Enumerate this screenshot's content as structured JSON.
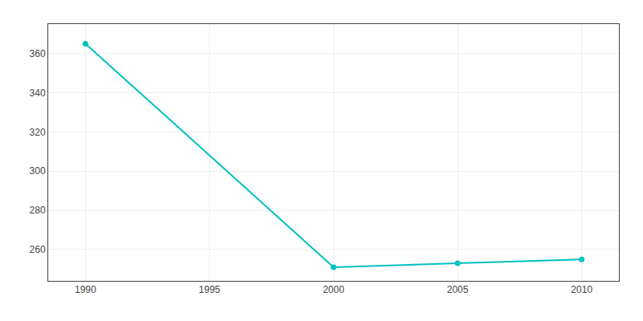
{
  "chart_data": {
    "type": "line",
    "x": [
      1990,
      2000,
      2005,
      2010
    ],
    "values": [
      365,
      251,
      253,
      255
    ],
    "color": "#00C0C0",
    "marker": "circle",
    "xlim": [
      1988.5,
      2011.5
    ],
    "ylim": [
      244,
      375
    ],
    "xticks": [
      1990,
      1995,
      2000,
      2005,
      2010
    ],
    "yticks": [
      260,
      280,
      300,
      320,
      340,
      360
    ],
    "grid": true
  }
}
